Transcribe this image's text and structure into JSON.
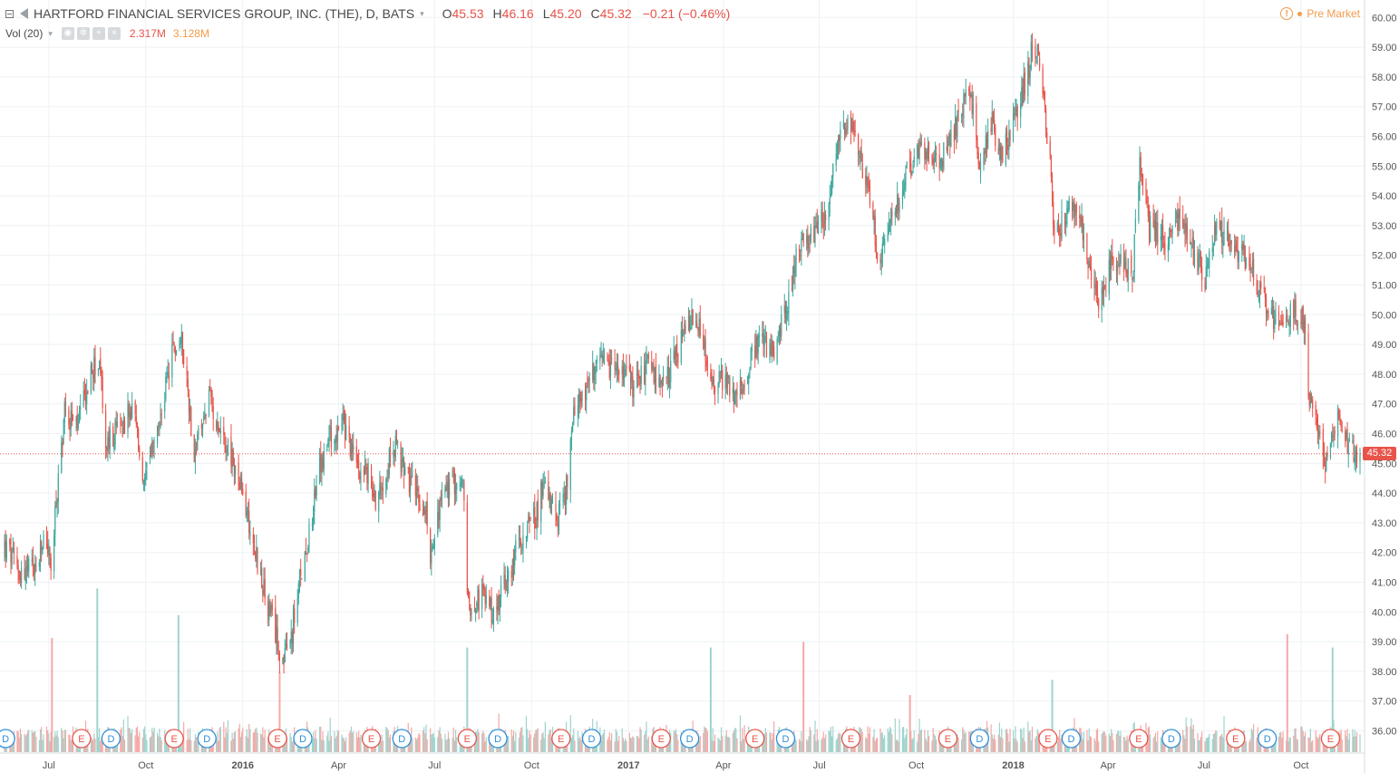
{
  "header": {
    "symbol_title": "HARTFORD FINANCIAL SERVICES GROUP, INC. (THE), D, BATS",
    "caret": "▾",
    "open_label": "O",
    "open_value": "45.53",
    "high_label": "H",
    "high_value": "46.16",
    "low_label": "L",
    "low_value": "45.20",
    "close_label": "C",
    "close_value": "45.32",
    "change": "−0.21 (−0.46%)",
    "volume_label": "Vol (20)",
    "volume_value": "2.317M",
    "volume_ma": "3.128M",
    "premarket": "Pre Market",
    "warning_glyph": "!"
  },
  "colors": {
    "up": "#3ea79c",
    "down": "#e8534a",
    "vol_up": "#9fd3cd",
    "vol_down": "#f2aaa6",
    "grid": "#eef1f4",
    "price_line": "#e8534a",
    "axis_text": "#555555"
  },
  "chart_data": {
    "type": "candlestick",
    "title": "HARTFORD FINANCIAL SERVICES GROUP, INC. (THE), D, BATS",
    "interval": "daily",
    "last_price": 45.32,
    "ylim": [
      35.2,
      60.1
    ],
    "y_ticks": [
      36,
      37,
      38,
      39,
      40,
      41,
      42,
      43,
      44,
      45,
      46,
      47,
      48,
      49,
      50,
      51,
      52,
      53,
      54,
      55,
      56,
      57,
      58,
      59,
      60
    ],
    "x_range": [
      "2015-05-20",
      "2018-11-26"
    ],
    "x_ticks": [
      {
        "date": "2015-07-01",
        "label": "Jul",
        "bold": false
      },
      {
        "date": "2015-10-01",
        "label": "Oct",
        "bold": false
      },
      {
        "date": "2016-01-01",
        "label": "2016",
        "bold": true
      },
      {
        "date": "2016-04-01",
        "label": "Apr",
        "bold": false
      },
      {
        "date": "2016-07-01",
        "label": "Jul",
        "bold": false
      },
      {
        "date": "2016-10-01",
        "label": "Oct",
        "bold": false
      },
      {
        "date": "2017-01-01",
        "label": "2017",
        "bold": true
      },
      {
        "date": "2017-04-01",
        "label": "Apr",
        "bold": false
      },
      {
        "date": "2017-07-01",
        "label": "Jul",
        "bold": false
      },
      {
        "date": "2017-10-01",
        "label": "Oct",
        "bold": false
      },
      {
        "date": "2018-01-01",
        "label": "2018",
        "bold": true
      },
      {
        "date": "2018-04-01",
        "label": "Apr",
        "bold": false
      },
      {
        "date": "2018-07-01",
        "label": "Jul",
        "bold": false
      },
      {
        "date": "2018-10-01",
        "label": "Oct",
        "bold": false
      }
    ],
    "price_path": [
      [
        "2015-05-20",
        42.2
      ],
      [
        "2015-06-05",
        41.3
      ],
      [
        "2015-06-20",
        41.5
      ],
      [
        "2015-06-28",
        42.7
      ],
      [
        "2015-07-03",
        41.4
      ],
      [
        "2015-07-08",
        43.6
      ],
      [
        "2015-07-16",
        46.8
      ],
      [
        "2015-07-28",
        46.2
      ],
      [
        "2015-08-10",
        48.0
      ],
      [
        "2015-08-18",
        48.5
      ],
      [
        "2015-08-24",
        45.5
      ],
      [
        "2015-09-05",
        46.2
      ],
      [
        "2015-09-20",
        46.8
      ],
      [
        "2015-09-29",
        44.2
      ],
      [
        "2015-10-12",
        46.0
      ],
      [
        "2015-10-27",
        48.8
      ],
      [
        "2015-11-05",
        49.1
      ],
      [
        "2015-11-16",
        45.3
      ],
      [
        "2015-11-30",
        47.2
      ],
      [
        "2015-12-10",
        46.3
      ],
      [
        "2015-12-21",
        45.2
      ],
      [
        "2016-01-04",
        43.5
      ],
      [
        "2016-01-12",
        42.2
      ],
      [
        "2016-01-22",
        40.5
      ],
      [
        "2016-02-09",
        38.3
      ],
      [
        "2016-02-16",
        39.2
      ],
      [
        "2016-02-26",
        41.4
      ],
      [
        "2016-03-14",
        44.8
      ],
      [
        "2016-03-24",
        45.9
      ],
      [
        "2016-04-05",
        46.3
      ],
      [
        "2016-04-18",
        45.0
      ],
      [
        "2016-04-29",
        44.6
      ],
      [
        "2016-05-06",
        43.8
      ],
      [
        "2016-05-24",
        45.6
      ],
      [
        "2016-06-10",
        44.2
      ],
      [
        "2016-06-24",
        43.3
      ],
      [
        "2016-06-27",
        41.8
      ],
      [
        "2016-07-08",
        43.9
      ],
      [
        "2016-07-20",
        44.4
      ],
      [
        "2016-07-29",
        44.1
      ],
      [
        "2016-08-01",
        40.2
      ],
      [
        "2016-08-15",
        40.6
      ],
      [
        "2016-08-26",
        39.9
      ],
      [
        "2016-09-12",
        41.6
      ],
      [
        "2016-09-23",
        42.7
      ],
      [
        "2016-10-05",
        43.2
      ],
      [
        "2016-10-14",
        44.6
      ],
      [
        "2016-10-24",
        43.0
      ],
      [
        "2016-11-03",
        44.1
      ],
      [
        "2016-11-10",
        46.5
      ],
      [
        "2016-11-18",
        47.4
      ],
      [
        "2016-12-05",
        48.3
      ],
      [
        "2016-12-21",
        48.2
      ],
      [
        "2017-01-05",
        47.6
      ],
      [
        "2017-01-20",
        48.3
      ],
      [
        "2017-02-01",
        47.4
      ],
      [
        "2017-02-15",
        48.6
      ],
      [
        "2017-02-28",
        49.8
      ],
      [
        "2017-03-10",
        49.5
      ],
      [
        "2017-03-20",
        47.6
      ],
      [
        "2017-03-31",
        47.9
      ],
      [
        "2017-04-13",
        47.2
      ],
      [
        "2017-04-24",
        48.2
      ],
      [
        "2017-05-05",
        49.1
      ],
      [
        "2017-05-19",
        48.7
      ],
      [
        "2017-05-30",
        50.1
      ],
      [
        "2017-06-09",
        52.0
      ],
      [
        "2017-06-22",
        52.5
      ],
      [
        "2017-07-06",
        53.3
      ],
      [
        "2017-07-20",
        55.9
      ],
      [
        "2017-08-02",
        56.5
      ],
      [
        "2017-08-11",
        54.8
      ],
      [
        "2017-08-21",
        53.6
      ],
      [
        "2017-08-25",
        51.6
      ],
      [
        "2017-09-05",
        52.9
      ],
      [
        "2017-09-20",
        54.6
      ],
      [
        "2017-10-02",
        55.4
      ],
      [
        "2017-10-13",
        55.7
      ],
      [
        "2017-10-24",
        55.1
      ],
      [
        "2017-11-06",
        56.2
      ],
      [
        "2017-11-20",
        57.7
      ],
      [
        "2017-11-30",
        55.2
      ],
      [
        "2017-12-11",
        56.5
      ],
      [
        "2017-12-22",
        55.4
      ],
      [
        "2018-01-05",
        56.8
      ],
      [
        "2018-01-19",
        58.9
      ],
      [
        "2018-01-26",
        58.7
      ],
      [
        "2018-02-05",
        55.1
      ],
      [
        "2018-02-09",
        52.5
      ],
      [
        "2018-02-21",
        53.6
      ],
      [
        "2018-03-05",
        53.4
      ],
      [
        "2018-03-14",
        51.4
      ],
      [
        "2018-03-23",
        50.6
      ],
      [
        "2018-04-04",
        51.6
      ],
      [
        "2018-04-13",
        52.1
      ],
      [
        "2018-04-24",
        51.2
      ],
      [
        "2018-05-01",
        55.0
      ],
      [
        "2018-05-10",
        52.9
      ],
      [
        "2018-05-25",
        52.6
      ],
      [
        "2018-06-08",
        53.2
      ],
      [
        "2018-06-22",
        52.0
      ],
      [
        "2018-07-02",
        51.3
      ],
      [
        "2018-07-13",
        53.1
      ],
      [
        "2018-07-27",
        52.4
      ],
      [
        "2018-08-07",
        52.1
      ],
      [
        "2018-08-20",
        51.1
      ],
      [
        "2018-09-04",
        49.8
      ],
      [
        "2018-09-14",
        49.3
      ],
      [
        "2018-09-24",
        50.2
      ],
      [
        "2018-10-05",
        49.7
      ],
      [
        "2018-10-09",
        47.0
      ],
      [
        "2018-10-16",
        46.3
      ],
      [
        "2018-10-25",
        44.9
      ],
      [
        "2018-11-02",
        46.2
      ],
      [
        "2018-11-08",
        46.6
      ],
      [
        "2018-11-16",
        45.6
      ],
      [
        "2018-11-26",
        45.32
      ]
    ],
    "event_markers": [
      {
        "date": "2015-05-21",
        "type": "D"
      },
      {
        "date": "2015-08-01",
        "type": "E"
      },
      {
        "date": "2015-08-29",
        "type": "D"
      },
      {
        "date": "2015-10-28",
        "type": "E"
      },
      {
        "date": "2015-11-28",
        "type": "D"
      },
      {
        "date": "2016-02-03",
        "type": "E"
      },
      {
        "date": "2016-02-27",
        "type": "D"
      },
      {
        "date": "2016-05-02",
        "type": "E"
      },
      {
        "date": "2016-05-31",
        "type": "D"
      },
      {
        "date": "2016-08-01",
        "type": "E"
      },
      {
        "date": "2016-08-30",
        "type": "D"
      },
      {
        "date": "2016-10-29",
        "type": "E"
      },
      {
        "date": "2016-11-27",
        "type": "D"
      },
      {
        "date": "2017-02-01",
        "type": "E"
      },
      {
        "date": "2017-02-28",
        "type": "D"
      },
      {
        "date": "2017-05-01",
        "type": "E"
      },
      {
        "date": "2017-05-30",
        "type": "D"
      },
      {
        "date": "2017-07-31",
        "type": "E"
      },
      {
        "date": "2017-10-31",
        "type": "E"
      },
      {
        "date": "2017-11-30",
        "type": "D"
      },
      {
        "date": "2018-02-03",
        "type": "E"
      },
      {
        "date": "2018-02-25",
        "type": "D"
      },
      {
        "date": "2018-04-30",
        "type": "E"
      },
      {
        "date": "2018-05-31",
        "type": "D"
      },
      {
        "date": "2018-07-31",
        "type": "E"
      },
      {
        "date": "2018-08-30",
        "type": "D"
      },
      {
        "date": "2018-10-29",
        "type": "E"
      }
    ],
    "volume": {
      "name": "Vol (20)",
      "last": "2.317M",
      "ma20": "3.128M",
      "spikes": [
        {
          "date": "2015-08-16",
          "level": 0.86
        },
        {
          "date": "2015-07-04",
          "level": 0.6
        },
        {
          "date": "2015-11-01",
          "level": 0.72
        },
        {
          "date": "2016-02-05",
          "level": 0.42
        },
        {
          "date": "2016-08-01",
          "level": 0.55
        },
        {
          "date": "2017-06-16",
          "level": 0.58
        },
        {
          "date": "2017-03-20",
          "level": 0.55
        },
        {
          "date": "2017-09-25",
          "level": 0.3
        },
        {
          "date": "2018-02-07",
          "level": 0.38
        },
        {
          "date": "2018-09-18",
          "level": 0.62
        },
        {
          "date": "2018-10-31",
          "level": 0.55
        }
      ]
    }
  }
}
